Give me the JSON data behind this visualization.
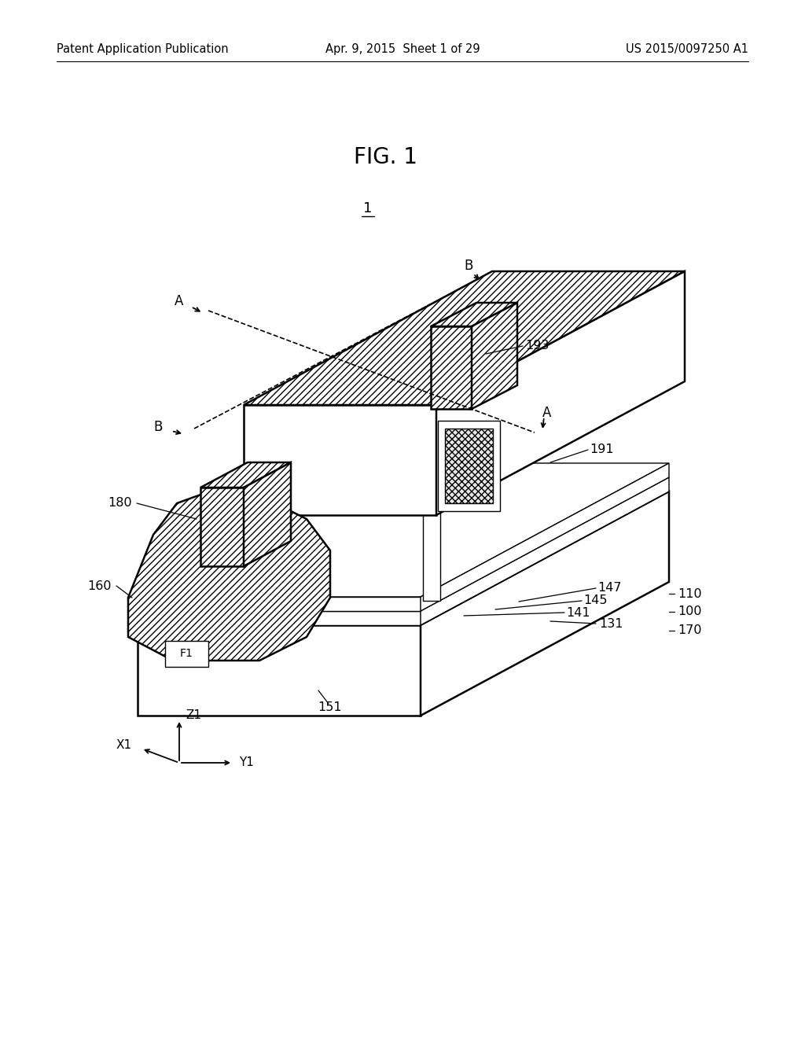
{
  "header_left": "Patent Application Publication",
  "header_center": "Apr. 9, 2015  Sheet 1 of 29",
  "header_right": "US 2015/0097250 A1",
  "fig_title": "FIG. 1",
  "device_label": "1",
  "bg_color": "#ffffff",
  "line_color": "#000000",
  "lw_main": 1.8,
  "lw_thin": 1.0,
  "lw_med": 1.3,
  "fontsize_header": 10.5,
  "fontsize_title": 19,
  "fontsize_label": 11.5,
  "fontsize_axis": 11,
  "hatch_dense": "////",
  "hatch_dot": "xxxx"
}
